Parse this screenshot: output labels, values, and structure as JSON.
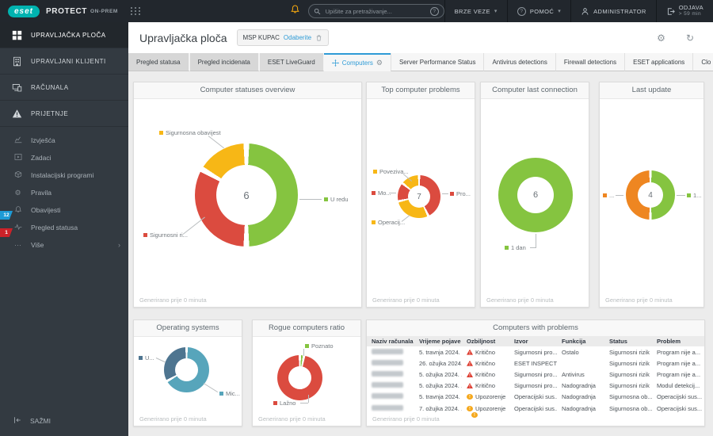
{
  "topbar": {
    "logo": "eset",
    "product": "PROTECT",
    "product_suffix": "ON-PREM",
    "search_placeholder": "Upišite za pretraživanje...",
    "quick_links_label": "BRZE VEZE",
    "help_label": "POMOĆ",
    "user_label": "ADMINISTRATOR",
    "logout_label": "ODJAVA",
    "logout_sub": "> 59 min"
  },
  "sidebar": {
    "items": [
      {
        "label": "UPRAVLJAČKA PLOČA",
        "icon": "dashboard-grid-icon",
        "active": true
      },
      {
        "label": "UPRAVLJANI KLIJENTI",
        "icon": "building-icon"
      },
      {
        "label": "RAČUNALA",
        "icon": "computers-icon"
      },
      {
        "label": "PRIJETNJE",
        "icon": "warning-triangle-icon"
      },
      {
        "label": "Izvješća",
        "icon": "reports-icon"
      },
      {
        "label": "Zadaci",
        "icon": "tasks-icon"
      },
      {
        "label": "Instalacijski programi",
        "icon": "installers-icon"
      },
      {
        "label": "Pravila",
        "icon": "policies-gear-icon"
      },
      {
        "label": "Obavijesti",
        "icon": "notifications-bell-icon"
      },
      {
        "label": "Pregled statusa",
        "icon": "status-overview-icon",
        "badge": "12",
        "badge_color": "#1D9BD6"
      },
      {
        "label": "Više",
        "icon": "more-ellipsis-icon",
        "badge": "1",
        "badge_color": "#CC2229"
      }
    ],
    "collapse_label": "SAŽMI"
  },
  "header": {
    "title": "Upravljačka ploča",
    "customer_chip": {
      "name": "MSP KUPAC",
      "action": "Odaberite"
    }
  },
  "tabs": {
    "items": [
      {
        "label": "Pregled statusa"
      },
      {
        "label": "Pregled incidenata"
      },
      {
        "label": "ESET LiveGuard"
      },
      {
        "label": "Computers",
        "active": true
      },
      {
        "label": "Server Performance Status"
      },
      {
        "label": "Antivirus detections"
      },
      {
        "label": "Firewall detections"
      },
      {
        "label": "ESET applications"
      },
      {
        "label": "Clo"
      }
    ]
  },
  "cards_footer": "Generirano prije 0 minuta",
  "colors": {
    "accent_blue": "#2E9BD6",
    "green": "#85C440",
    "red": "#DB4B3F",
    "yellow": "#F7B716",
    "orange": "#EE8621",
    "steel_blue": "#4E7590",
    "teal": "#57A5BB"
  },
  "chart_data": [
    {
      "type": "pie",
      "title": "Computer statuses overview",
      "center_label": "6",
      "total": 6,
      "segments": [
        {
          "label": "U redu",
          "value": 3,
          "color": "#85C440"
        },
        {
          "label": "Sigurnosni ri...",
          "value": 2,
          "color": "#DB4B3F"
        },
        {
          "label": "Sigurnosna obavijest",
          "value": 1,
          "color": "#F7B716"
        }
      ],
      "generated": "Generirano prije 0 minuta"
    },
    {
      "type": "pie",
      "title": "Top computer problems",
      "center_label": "7",
      "total": 7,
      "segments": [
        {
          "label": "Pro...",
          "value": 3,
          "color": "#DB4B3F"
        },
        {
          "label": "Operacij...",
          "value": 2,
          "color": "#F7B716"
        },
        {
          "label": "Mo...",
          "value": 1,
          "color": "#DB4B3F"
        },
        {
          "label": "Poveziva...",
          "value": 1,
          "color": "#F7B716"
        }
      ],
      "generated": "Generirano prije 0 minuta"
    },
    {
      "type": "pie",
      "title": "Computer last connection",
      "center_label": "6",
      "total": 6,
      "segments": [
        {
          "label": "1 dan",
          "value": 6,
          "color": "#85C440"
        }
      ],
      "generated": "Generirano prije 0 minuta"
    },
    {
      "type": "pie",
      "title": "Last update",
      "center_label": "4",
      "total": 4,
      "segments": [
        {
          "label": "1...",
          "value": 2,
          "color": "#85C440"
        },
        {
          "label": "...",
          "value": 2,
          "color": "#EE8621"
        }
      ],
      "generated": "Generirano prije 0 minuta"
    },
    {
      "type": "pie",
      "title": "Operating systems",
      "center_label": "",
      "total": 6,
      "segments": [
        {
          "label": "Mic...",
          "value": 4,
          "color": "#57A5BB"
        },
        {
          "label": "U...",
          "value": 2,
          "color": "#4E7590"
        }
      ],
      "generated": "Generirano prije 0 minuta"
    },
    {
      "type": "pie",
      "title": "Rogue computers ratio",
      "center_label": "",
      "total": 100,
      "segments": [
        {
          "label": "Poznato",
          "value": 3,
          "color": "#85C440"
        },
        {
          "label": "Lažno",
          "value": 97,
          "color": "#DB4B3F"
        }
      ],
      "generated": "Generirano prije 0 minuta"
    },
    {
      "type": "table",
      "title": "Computers with problems",
      "columns": [
        "Naziv računala",
        "Vrijeme pojave",
        "Ozbiljnost",
        "Izvor",
        "Funkcija",
        "Status",
        "Problem"
      ],
      "rows": [
        {
          "name_redacted": true,
          "time": "5. travnja 2024. ...",
          "severity": "Kritično",
          "severity_level": "critical",
          "source": "Sigurnosni pro...",
          "function": "Ostalo",
          "status": "Sigurnosni rizik",
          "problem": "Program nije a..."
        },
        {
          "name_redacted": true,
          "time": "26. ožujka 2024...",
          "severity": "Kritično",
          "severity_level": "critical",
          "source": "ESET INSPECT ...",
          "function": "",
          "status": "Sigurnosni rizik",
          "problem": "Program nije a..."
        },
        {
          "name_redacted": true,
          "time": "5. ožujka 2024. ...",
          "severity": "Kritično",
          "severity_level": "critical",
          "source": "Sigurnosni pro...",
          "function": "Antivirus",
          "status": "Sigurnosni rizik",
          "problem": "Program nije a..."
        },
        {
          "name_redacted": true,
          "time": "5. ožujka 2024. ...",
          "severity": "Kritično",
          "severity_level": "critical",
          "source": "Sigurnosni pro...",
          "function": "Nadogradnja",
          "status": "Sigurnosni rizik",
          "problem": "Modul detekcij..."
        },
        {
          "name_redacted": true,
          "time": "5. travnja 2024. ...",
          "severity": "Upozorenje",
          "severity_level": "warning",
          "source": "Operacijski sus...",
          "function": "Nadogradnja",
          "status": "Sigurnosna ob...",
          "problem": "Operacijski sus..."
        },
        {
          "name_redacted": true,
          "time": "7. ožujka 2024. ...",
          "severity": "Upozorenje",
          "severity_level": "warning",
          "source": "Operacijski sus...",
          "function": "Nadogradnja",
          "status": "Sigurnosna ob...",
          "problem": "Operacijski sus..."
        }
      ],
      "partial_row_severity": "warning",
      "generated": "Generirano prije 0 minuta"
    }
  ]
}
